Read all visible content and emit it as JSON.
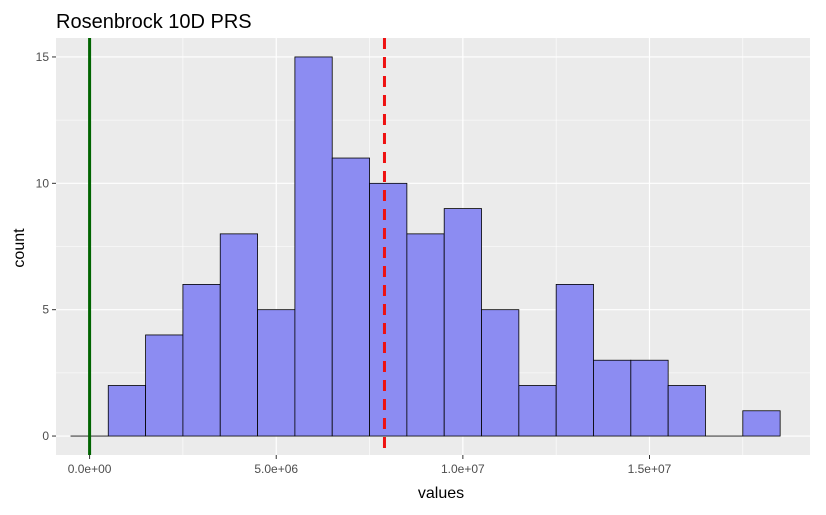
{
  "chart_data": {
    "type": "bar",
    "title": "Rosenbrock 10D PRS",
    "xlabel": "values",
    "ylabel": "count",
    "xlim": [
      -900000,
      19300000
    ],
    "ylim": [
      -0.75,
      15.75
    ],
    "x_ticks": [
      {
        "value": 0,
        "label": "0.0e+00"
      },
      {
        "value": 5000000,
        "label": "5.0e+06"
      },
      {
        "value": 10000000,
        "label": "1.0e+07"
      },
      {
        "value": 15000000,
        "label": "1.5e+07"
      }
    ],
    "y_ticks": [
      {
        "value": 0,
        "label": "0"
      },
      {
        "value": 5,
        "label": "5"
      },
      {
        "value": 10,
        "label": "10"
      },
      {
        "value": 15,
        "label": "15"
      }
    ],
    "bin_width": 1000000,
    "bins": [
      {
        "start": -500000,
        "end": 500000,
        "count": 0
      },
      {
        "start": 500000,
        "end": 1500000,
        "count": 2
      },
      {
        "start": 1500000,
        "end": 2500000,
        "count": 4
      },
      {
        "start": 2500000,
        "end": 3500000,
        "count": 6
      },
      {
        "start": 3500000,
        "end": 4500000,
        "count": 8
      },
      {
        "start": 4500000,
        "end": 5500000,
        "count": 5
      },
      {
        "start": 5500000,
        "end": 6500000,
        "count": 15
      },
      {
        "start": 6500000,
        "end": 7500000,
        "count": 11
      },
      {
        "start": 7500000,
        "end": 8500000,
        "count": 10
      },
      {
        "start": 8500000,
        "end": 9500000,
        "count": 8
      },
      {
        "start": 9500000,
        "end": 10500000,
        "count": 9
      },
      {
        "start": 10500000,
        "end": 11500000,
        "count": 5
      },
      {
        "start": 11500000,
        "end": 12500000,
        "count": 2
      },
      {
        "start": 12500000,
        "end": 13500000,
        "count": 6
      },
      {
        "start": 13500000,
        "end": 14500000,
        "count": 3
      },
      {
        "start": 14500000,
        "end": 15500000,
        "count": 3
      },
      {
        "start": 15500000,
        "end": 16500000,
        "count": 2
      },
      {
        "start": 16500000,
        "end": 17500000,
        "count": 0
      },
      {
        "start": 17500000,
        "end": 18500000,
        "count": 1
      }
    ],
    "vlines": [
      {
        "x": 0,
        "color": "#006400",
        "style": "solid"
      },
      {
        "x": 7900000,
        "color": "#ee1111",
        "style": "dashed"
      }
    ],
    "grid": true,
    "colors": {
      "bar_fill": "#8c8cf2",
      "bar_stroke": "#000000",
      "panel_bg": "#ebebeb",
      "grid_major": "#ffffff",
      "text": "#000000",
      "tick_text": "#4d4d4d"
    }
  }
}
